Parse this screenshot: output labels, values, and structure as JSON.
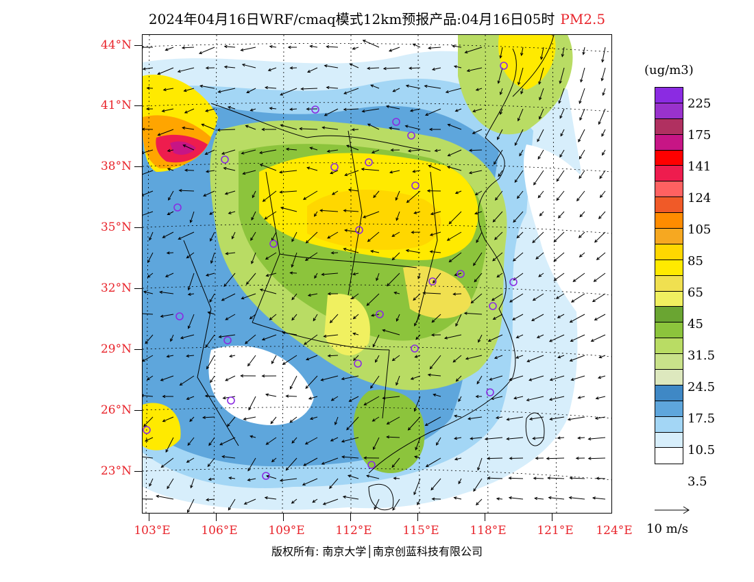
{
  "title": {
    "main": "2024年04月16日WRF/cmaq模式12km预报产品:04月16日05时",
    "pollutant": "PM2.5"
  },
  "map": {
    "latitude_labels": [
      "44°N",
      "41°N",
      "38°N",
      "35°N",
      "32°N",
      "29°N",
      "26°N",
      "23°N"
    ],
    "longitude_labels": [
      "103°E",
      "106°E",
      "109°E",
      "112°E",
      "115°E",
      "118°E",
      "121°E",
      "124°E"
    ],
    "station_marker_color": "#8a2be2",
    "province_boundary_color": "#000000"
  },
  "legend": {
    "unit": "(ug/m3)",
    "colors": [
      "#8b2be2",
      "#9932cc",
      "#b03060",
      "#c71585",
      "#ff0000",
      "#ee1c4e",
      "#ff6161",
      "#f05a28",
      "#ff8c00",
      "#f6a821",
      "#ffd700",
      "#ffea00",
      "#f0e050",
      "#f0f060",
      "#6aa532",
      "#8cc43c",
      "#b9dc64",
      "#c9e28a",
      "#dde8be",
      "#3f88c5",
      "#5ea6dc",
      "#a3d6f5",
      "#d7eefb",
      "#ffffff"
    ],
    "labels": [
      "225",
      "175",
      "141",
      "124",
      "105",
      "85",
      "65",
      "45",
      "31.5",
      "24.5",
      "17.5",
      "10.5",
      "3.5"
    ],
    "wind_reference": "10 m/s"
  },
  "footer": {
    "text": "版权所有: 南京大学│南京创蓝科技有限公司"
  }
}
